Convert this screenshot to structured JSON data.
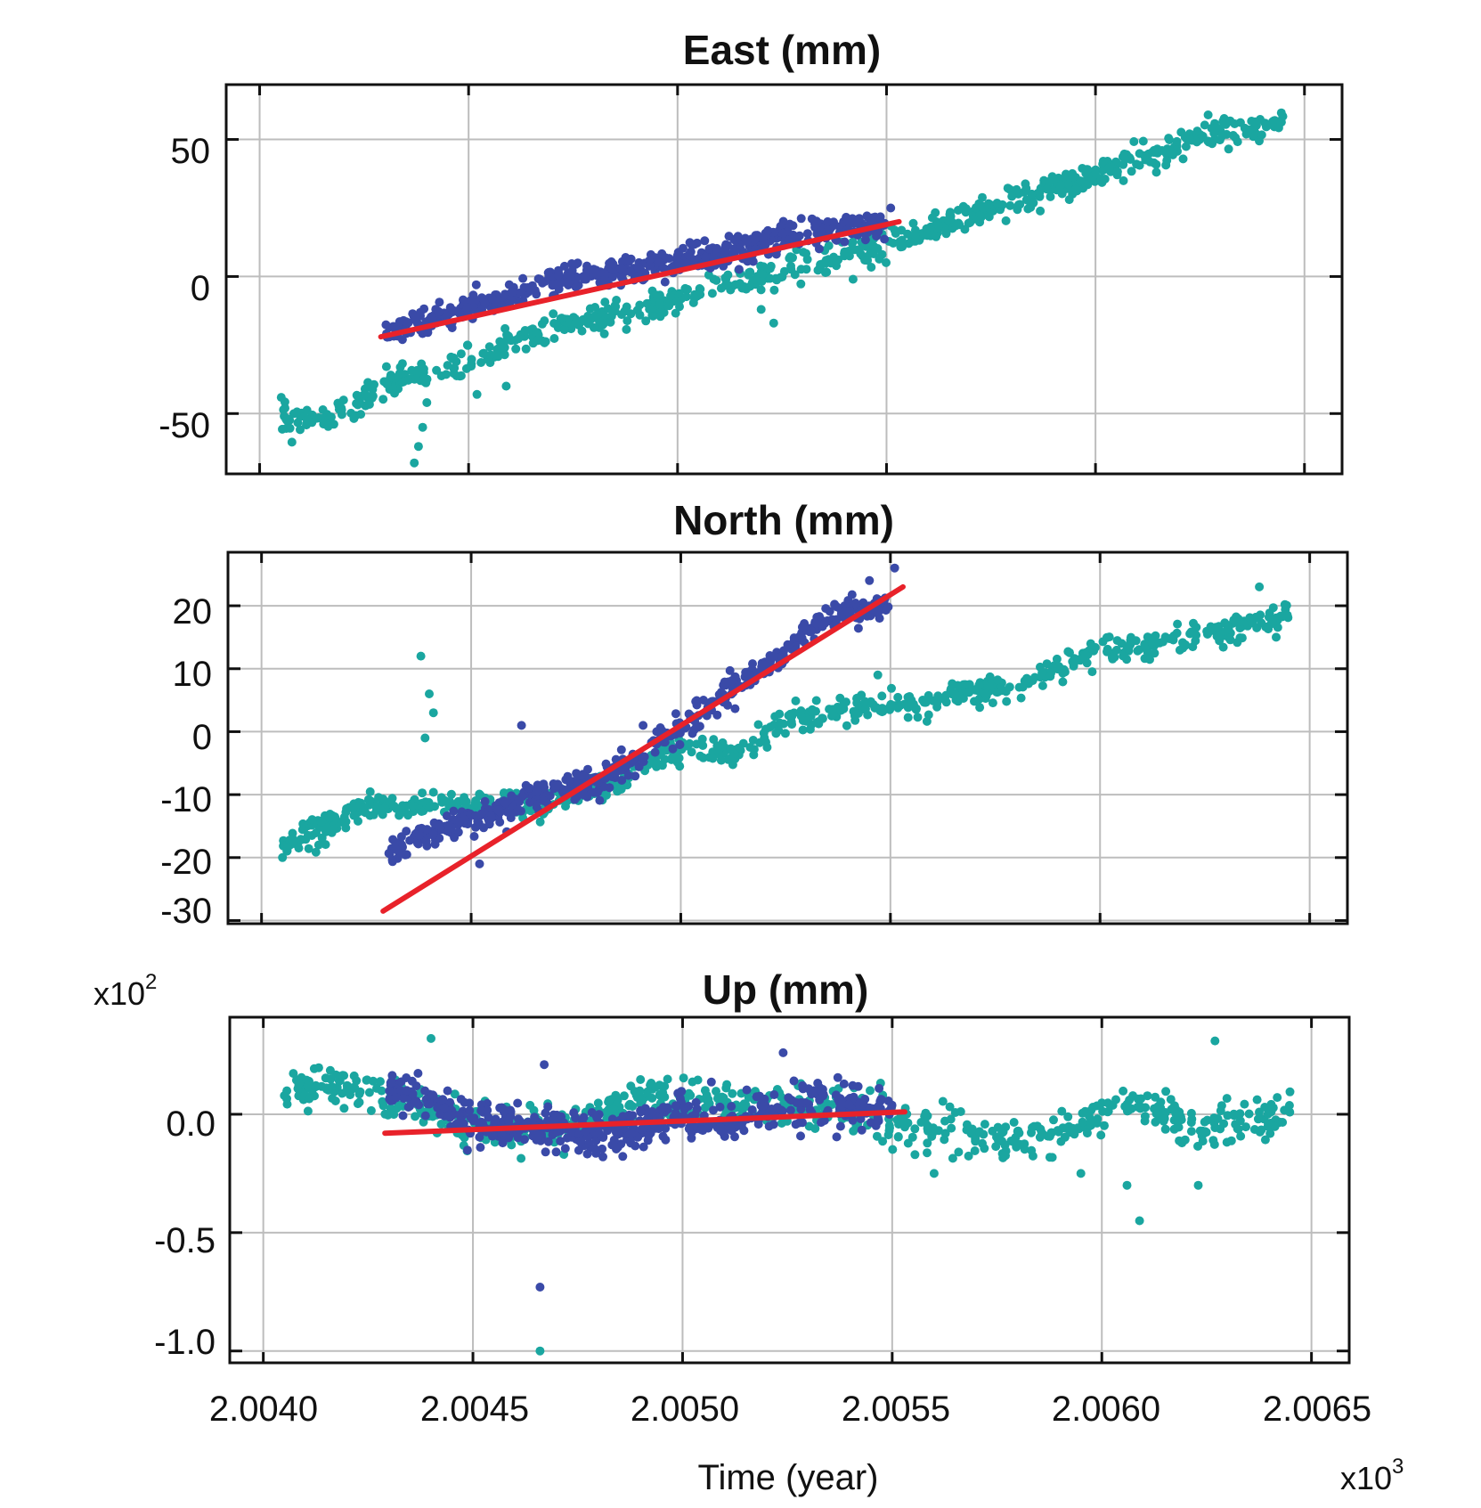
{
  "chart_data": [
    {
      "type": "scatter",
      "title": "East (mm)",
      "xlim": [
        2.00392,
        2.00659
      ],
      "ylim": [
        -72,
        70
      ],
      "yticks": [
        50,
        0,
        -50
      ],
      "ytick_labels": [
        "50",
        "0",
        "-50"
      ],
      "xticks": [
        2.004,
        2.0045,
        2.005,
        2.0055,
        2.006,
        2.0065
      ],
      "grid": true,
      "series": [
        {
          "color": "#1aa6a0",
          "anchors": [
            [
              2.00405,
              -51
            ],
            [
              2.00415,
              -53
            ],
            [
              2.00425,
              -45
            ],
            [
              2.00435,
              -37
            ],
            [
              2.00445,
              -34
            ],
            [
              2.00455,
              -28
            ],
            [
              2.00465,
              -22
            ],
            [
              2.00475,
              -17
            ],
            [
              2.00485,
              -14
            ],
            [
              2.00495,
              -11
            ],
            [
              2.00505,
              -6
            ],
            [
              2.00515,
              -2
            ],
            [
              2.00525,
              2
            ],
            [
              2.00535,
              6
            ],
            [
              2.00545,
              10
            ],
            [
              2.00555,
              15
            ],
            [
              2.00565,
              20
            ],
            [
              2.00575,
              25
            ],
            [
              2.00585,
              29
            ],
            [
              2.00595,
              35
            ],
            [
              2.00605,
              40
            ],
            [
              2.00615,
              45
            ],
            [
              2.00625,
              51
            ],
            [
              2.00635,
              54
            ],
            [
              2.00645,
              57
            ]
          ],
          "outliers": [
            [
              2.00437,
              -68
            ],
            [
              2.00438,
              -62
            ],
            [
              2.00439,
              -55
            ],
            [
              2.0044,
              -46
            ],
            [
              2.00452,
              -43
            ],
            [
              2.00459,
              -40
            ],
            [
              2.00523,
              -17
            ],
            [
              2.0052,
              -12
            ],
            [
              2.00542,
              -1
            ]
          ]
        },
        {
          "color": "#3a4aa8",
          "anchors": [
            [
              2.0043,
              -20
            ],
            [
              2.0044,
              -16
            ],
            [
              2.0045,
              -12
            ],
            [
              2.0046,
              -7
            ],
            [
              2.0047,
              -2
            ],
            [
              2.0048,
              0
            ],
            [
              2.0049,
              3
            ],
            [
              2.005,
              5
            ],
            [
              2.0051,
              8
            ],
            [
              2.0052,
              12
            ],
            [
              2.0053,
              16
            ],
            [
              2.0054,
              18
            ],
            [
              2.0055,
              19
            ]
          ],
          "outliers": [
            [
              2.00551,
              25
            ],
            [
              2.00497,
              -2
            ]
          ]
        }
      ],
      "fit_line": {
        "color": "#e8222a",
        "x": [
          2.00429,
          2.00553
        ],
        "y": [
          -22,
          20
        ]
      }
    },
    {
      "type": "scatter",
      "title": "North (mm)",
      "xlim": [
        2.00392,
        2.00659
      ],
      "ylim": [
        -30.5,
        28.5
      ],
      "yticks": [
        20,
        10,
        0,
        -10,
        -20,
        -30
      ],
      "ytick_labels": [
        "20",
        "10",
        "0",
        "-10",
        "-20",
        "-30"
      ],
      "xticks": [
        2.004,
        2.0045,
        2.005,
        2.0055,
        2.006,
        2.0065
      ],
      "grid": true,
      "series": [
        {
          "color": "#1aa6a0",
          "anchors": [
            [
              2.00405,
              -18
            ],
            [
              2.00415,
              -15
            ],
            [
              2.00425,
              -12
            ],
            [
              2.00435,
              -12
            ],
            [
              2.00445,
              -11
            ],
            [
              2.00455,
              -11
            ],
            [
              2.00465,
              -12
            ],
            [
              2.00475,
              -10
            ],
            [
              2.00485,
              -8
            ],
            [
              2.00495,
              -4
            ],
            [
              2.00505,
              -3
            ],
            [
              2.00515,
              -3
            ],
            [
              2.00525,
              2
            ],
            [
              2.00535,
              3
            ],
            [
              2.00545,
              4
            ],
            [
              2.00555,
              4
            ],
            [
              2.00565,
              6
            ],
            [
              2.00575,
              7
            ],
            [
              2.00585,
              8
            ],
            [
              2.00595,
              12
            ],
            [
              2.00605,
              13
            ],
            [
              2.00615,
              14
            ],
            [
              2.00625,
              15
            ],
            [
              2.00635,
              17
            ],
            [
              2.00645,
              18
            ]
          ],
          "outliers": [
            [
              2.00438,
              12
            ],
            [
              2.0044,
              6
            ],
            [
              2.00441,
              3
            ],
            [
              2.00439,
              -1
            ],
            [
              2.00405,
              -20
            ],
            [
              2.00547,
              9
            ],
            [
              2.00642,
              15
            ],
            [
              2.00638,
              23
            ]
          ]
        },
        {
          "color": "#3a4aa8",
          "anchors": [
            [
              2.0043,
              -19
            ],
            [
              2.0044,
              -16
            ],
            [
              2.0045,
              -14
            ],
            [
              2.0046,
              -12
            ],
            [
              2.0047,
              -9
            ],
            [
              2.0048,
              -8
            ],
            [
              2.0049,
              -4
            ],
            [
              2.005,
              0
            ],
            [
              2.0051,
              6
            ],
            [
              2.0052,
              10
            ],
            [
              2.0053,
              16
            ],
            [
              2.0054,
              19
            ],
            [
              2.0055,
              20
            ]
          ],
          "outliers": [
            [
              2.00462,
              1
            ],
            [
              2.00452,
              -21
            ],
            [
              2.00551,
              26
            ],
            [
              2.00545,
              24
            ],
            [
              2.00491,
              1
            ]
          ]
        }
      ],
      "fit_line": {
        "color": "#e8222a",
        "x": [
          2.00429,
          2.00553
        ],
        "y": [
          -28.5,
          23
        ]
      }
    },
    {
      "type": "scatter",
      "title": "Up (mm)",
      "multiplier": "x10",
      "multiplier_exp": "2",
      "xlim": [
        2.00392,
        2.00659
      ],
      "ylim": [
        -1.05,
        0.41
      ],
      "yticks": [
        0.0,
        -0.5,
        -1.0
      ],
      "ytick_labels": [
        "0.0",
        "-0.5",
        "-1.0"
      ],
      "xticks": [
        2.004,
        2.0045,
        2.005,
        2.0055,
        2.006,
        2.0065
      ],
      "xtick_labels": [
        "2.0040",
        "2.0045",
        "2.0050",
        "2.0055",
        "2.0060",
        "2.0065"
      ],
      "xlabel": "Time (year)",
      "x_multiplier": "x10",
      "x_multiplier_exp": "3",
      "grid": true,
      "series": [
        {
          "color": "#1aa6a0",
          "anchors": [
            [
              2.00405,
              0.1
            ],
            [
              2.00415,
              0.12
            ],
            [
              2.00425,
              0.08
            ],
            [
              2.00435,
              0.05
            ],
            [
              2.00445,
              -0.02
            ],
            [
              2.00455,
              -0.08
            ],
            [
              2.00465,
              -0.05
            ],
            [
              2.00475,
              -0.05
            ],
            [
              2.00485,
              0.05
            ],
            [
              2.00495,
              0.08
            ],
            [
              2.00505,
              0.05
            ],
            [
              2.00515,
              0.03
            ],
            [
              2.00525,
              0.02
            ],
            [
              2.00535,
              0.04
            ],
            [
              2.00545,
              -0.02
            ],
            [
              2.00555,
              -0.06
            ],
            [
              2.00565,
              -0.05
            ],
            [
              2.00575,
              -0.12
            ],
            [
              2.00585,
              -0.1
            ],
            [
              2.00595,
              -0.05
            ],
            [
              2.00605,
              0.05
            ],
            [
              2.00615,
              0.02
            ],
            [
              2.00625,
              -0.08
            ],
            [
              2.00635,
              -0.02
            ],
            [
              2.00645,
              0.0
            ]
          ],
          "outliers": [
            [
              2.00466,
              -1.0
            ],
            [
              2.00609,
              -0.45
            ],
            [
              2.00606,
              -0.3
            ],
            [
              2.00627,
              0.31
            ],
            [
              2.00595,
              -0.25
            ],
            [
              2.00623,
              -0.3
            ],
            [
              2.0056,
              -0.25
            ],
            [
              2.0044,
              0.32
            ]
          ]
        },
        {
          "color": "#3a4aa8",
          "anchors": [
            [
              2.0043,
              0.12
            ],
            [
              2.0044,
              0.05
            ],
            [
              2.0045,
              -0.02
            ],
            [
              2.0046,
              -0.06
            ],
            [
              2.0047,
              -0.08
            ],
            [
              2.0048,
              -0.1
            ],
            [
              2.0049,
              -0.05
            ],
            [
              2.005,
              0.0
            ],
            [
              2.0051,
              -0.05
            ],
            [
              2.0052,
              0.02
            ],
            [
              2.0053,
              0.05
            ],
            [
              2.0054,
              0.04
            ],
            [
              2.0055,
              0.03
            ]
          ],
          "outliers": [
            [
              2.00466,
              -0.73
            ],
            [
              2.00467,
              0.21
            ],
            [
              2.00524,
              0.26
            ],
            [
              2.00481,
              -0.18
            ]
          ]
        }
      ],
      "fit_line": {
        "color": "#e8222a",
        "x": [
          2.00429,
          2.00553
        ],
        "y": [
          -0.08,
          0.01
        ]
      }
    }
  ]
}
